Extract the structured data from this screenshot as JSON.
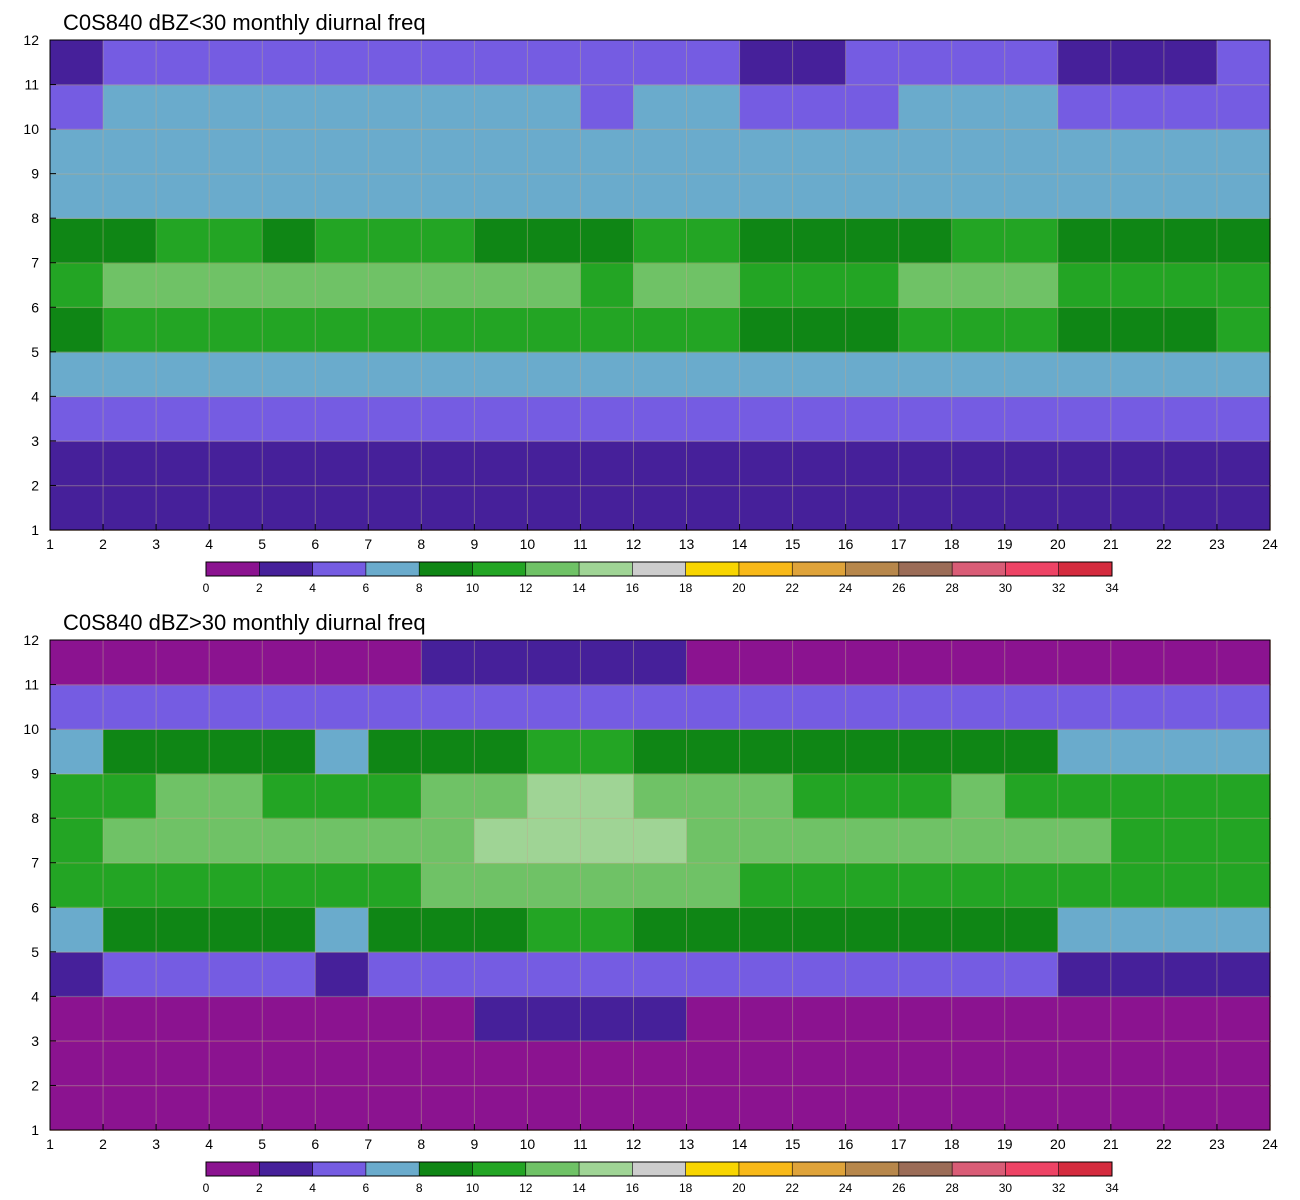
{
  "palette": {
    "colors": [
      "#8b1390",
      "#46209a",
      "#755ce2",
      "#6aabcc",
      "#0f8615",
      "#23a524",
      "#6fc266",
      "#9fd495",
      "#cdcdcd",
      "#f8d500",
      "#f8b918",
      "#dfa33a",
      "#b7874b",
      "#9b6c57",
      "#d95c76",
      "#ee4365",
      "#d42b3e"
    ],
    "contour_line": "#e8a838"
  },
  "colorbar": {
    "levels": [
      "0",
      "2",
      "4",
      "6",
      "8",
      "10",
      "12",
      "14",
      "16",
      "18",
      "20",
      "22",
      "24",
      "26",
      "28",
      "30",
      "32",
      "34"
    ]
  },
  "chart_data": [
    {
      "type": "heatmap",
      "title": "C0S840 dBZ<30 monthly diurnal freq",
      "x_ticks": [
        "1",
        "2",
        "3",
        "4",
        "5",
        "6",
        "7",
        "8",
        "9",
        "10",
        "11",
        "12",
        "13",
        "14",
        "15",
        "16",
        "17",
        "18",
        "19",
        "20",
        "21",
        "22",
        "23",
        "24"
      ],
      "y_ticks": [
        "1",
        "2",
        "3",
        "4",
        "5",
        "6",
        "7",
        "8",
        "9",
        "10",
        "11",
        "12"
      ],
      "xlim": [
        1,
        24
      ],
      "ylim": [
        1,
        12
      ],
      "grid": true,
      "profile": [
        3.5,
        2.5,
        3.0,
        6.5,
        7.0,
        11.5,
        10.5,
        7.5,
        6.0,
        6.5,
        4.5,
        3.0
      ],
      "hour_mod": [
        0.0,
        0.3,
        0.8,
        1.0,
        0.8,
        0.4,
        1.2,
        0.7,
        0.9,
        0.4,
        0.7,
        0.3,
        1.3,
        0.6,
        0.0,
        0.3,
        0.6,
        0.5,
        0.9,
        0.5,
        0.1,
        0.0,
        0.6,
        0.4
      ],
      "colorbar_levels": [
        0,
        2,
        4,
        6,
        8,
        10,
        12,
        14,
        16,
        18,
        20,
        22,
        24,
        26,
        28,
        30,
        32,
        34
      ]
    },
    {
      "type": "heatmap",
      "title": "C0S840 dBZ>30 monthly diurnal freq",
      "x_ticks": [
        "1",
        "2",
        "3",
        "4",
        "5",
        "6",
        "7",
        "8",
        "9",
        "10",
        "11",
        "12",
        "13",
        "14",
        "15",
        "16",
        "17",
        "18",
        "19",
        "20",
        "21",
        "22",
        "23",
        "24"
      ],
      "y_ticks": [
        "1",
        "2",
        "3",
        "4",
        "5",
        "6",
        "7",
        "8",
        "9",
        "10",
        "11",
        "12"
      ],
      "xlim": [
        1,
        24
      ],
      "ylim": [
        1,
        12
      ],
      "grid": true,
      "profile": [
        1.0,
        1.0,
        1.2,
        2.0,
        5.5,
        9.5,
        10.5,
        12.5,
        9.0,
        6.0,
        2.5,
        0.8
      ],
      "hour_mod": [
        0.0,
        0.3,
        1.0,
        1.0,
        0.8,
        0.4,
        0.3,
        1.0,
        1.6,
        2.0,
        2.2,
        2.0,
        1.5,
        1.0,
        0.5,
        0.3,
        0.5,
        0.8,
        0.7,
        0.5,
        0.2,
        0.0,
        0.1,
        0.3
      ],
      "colorbar_levels": [
        0,
        2,
        4,
        6,
        8,
        10,
        12,
        14,
        16,
        18,
        20,
        22,
        24,
        26,
        28,
        30,
        32,
        34
      ]
    }
  ]
}
